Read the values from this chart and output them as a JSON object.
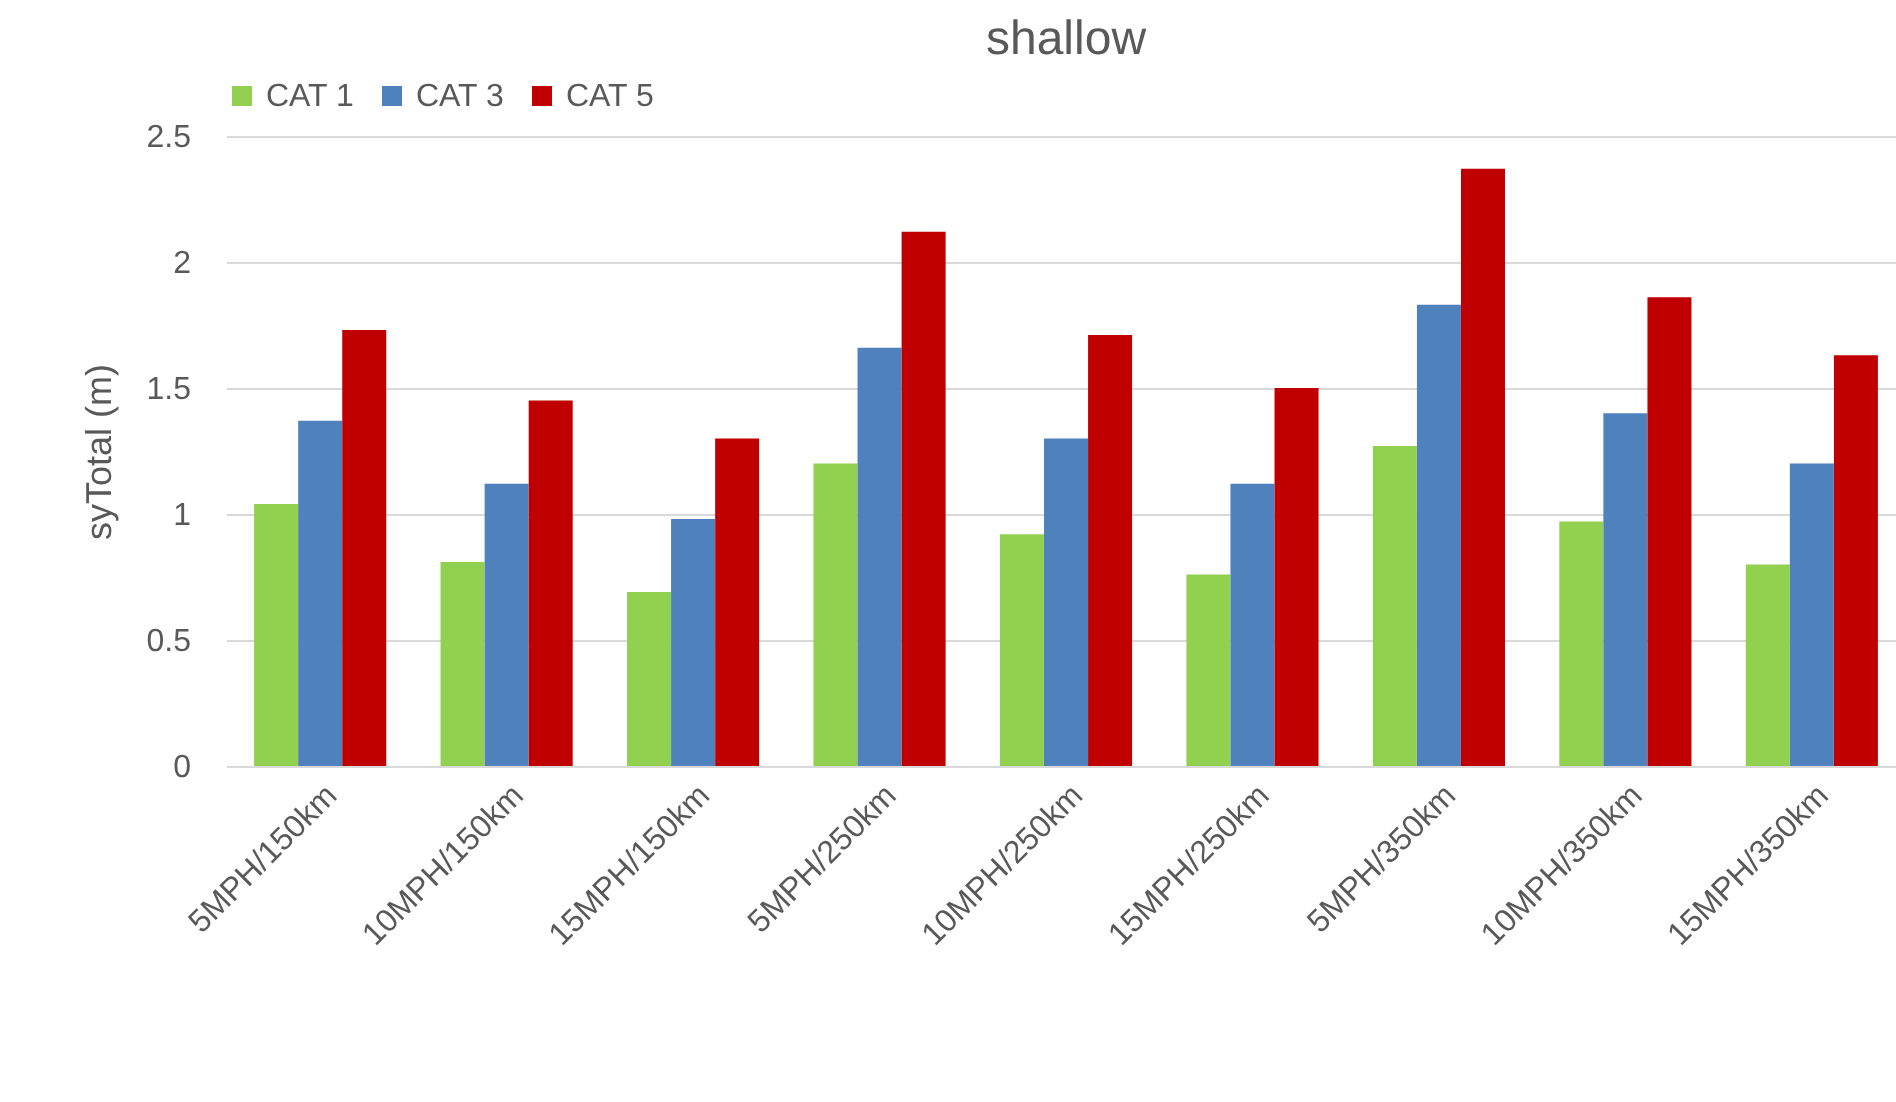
{
  "chart_data": {
    "type": "bar",
    "title": "shallow",
    "ylabel": "syTotal (m)",
    "categories": [
      "5MPH/150km",
      "10MPH/150km",
      "15MPH/150km",
      "5MPH/250km",
      "10MPH/250km",
      "15MPH/250km",
      "5MPH/350km",
      "10MPH/350km",
      "15MPH/350km"
    ],
    "series": [
      {
        "name": "CAT 1",
        "color": "#92d050",
        "values": [
          1.04,
          0.81,
          0.69,
          1.2,
          0.92,
          0.76,
          1.27,
          0.97,
          0.8
        ]
      },
      {
        "name": "CAT 3",
        "color": "#4f81bd",
        "values": [
          1.37,
          1.12,
          0.98,
          1.66,
          1.3,
          1.12,
          1.83,
          1.4,
          1.2
        ]
      },
      {
        "name": "CAT 5",
        "color": "#c00000",
        "values": [
          1.73,
          1.45,
          1.3,
          2.12,
          1.71,
          1.5,
          2.37,
          1.86,
          1.63
        ]
      }
    ],
    "ylim": [
      0,
      2.5
    ],
    "yticks": [
      0,
      0.5,
      1,
      1.5,
      2,
      2.5
    ],
    "grid": "y",
    "legend": "top"
  }
}
